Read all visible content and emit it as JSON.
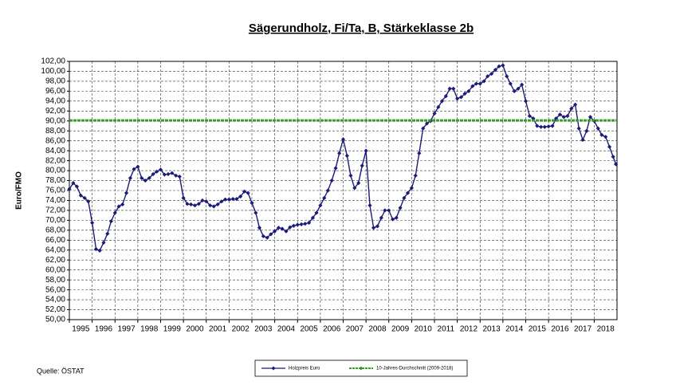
{
  "chart_data": {
    "type": "line",
    "title": "Sägerundholz, Fi/Ta, B, Stärkeklasse 2b",
    "y_label": "Euro/FMO",
    "source": "Quelle: ÖSTAT",
    "xlim": [
      1995,
      2019
    ],
    "xticks": [
      1995,
      1996,
      1997,
      1998,
      1999,
      2000,
      2001,
      2002,
      2003,
      2004,
      2005,
      2006,
      2007,
      2008,
      2009,
      2010,
      2011,
      2012,
      2013,
      2014,
      2015,
      2016,
      2017,
      2018
    ],
    "ylim": [
      50,
      102
    ],
    "yticks": [
      {
        "value": 50,
        "label": "50,00"
      },
      {
        "value": 52,
        "label": "52,00"
      },
      {
        "value": 54,
        "label": "54,00"
      },
      {
        "value": 56,
        "label": "56,00"
      },
      {
        "value": 58,
        "label": "58,00"
      },
      {
        "value": 60,
        "label": "60,00"
      },
      {
        "value": 62,
        "label": "62,00"
      },
      {
        "value": 64,
        "label": "64,00"
      },
      {
        "value": 66,
        "label": "66,00"
      },
      {
        "value": 68,
        "label": "68,00"
      },
      {
        "value": 70,
        "label": "70,00"
      },
      {
        "value": 72,
        "label": "72,00"
      },
      {
        "value": 74,
        "label": "74,00"
      },
      {
        "value": 76,
        "label": "76,00"
      },
      {
        "value": 78,
        "label": "78,00"
      },
      {
        "value": 80,
        "label": "80,00"
      },
      {
        "value": 82,
        "label": "82,00"
      },
      {
        "value": 84,
        "label": "84,00"
      },
      {
        "value": 86,
        "label": "86,00"
      },
      {
        "value": 88,
        "label": "88,00"
      },
      {
        "value": 90,
        "label": "90,00"
      },
      {
        "value": 92,
        "label": "92,00"
      },
      {
        "value": 94,
        "label": "94,00"
      },
      {
        "value": 96,
        "label": "96,00"
      },
      {
        "value": 98,
        "label": "98,00"
      },
      {
        "value": 100,
        "label": "100,00"
      },
      {
        "value": 102,
        "label": "102,00"
      }
    ],
    "grid": true,
    "series": [
      {
        "name": "Holzpreis Euro",
        "color": "#1c1c78",
        "x": [
          1995,
          1995.17,
          1995.33,
          1995.5,
          1995.67,
          1995.83,
          1996,
          1996.17,
          1996.33,
          1996.5,
          1996.67,
          1996.83,
          1997,
          1997.17,
          1997.33,
          1997.5,
          1997.67,
          1997.83,
          1998,
          1998.17,
          1998.33,
          1998.5,
          1998.67,
          1998.83,
          1999,
          1999.17,
          1999.33,
          1999.5,
          1999.67,
          1999.83,
          2000,
          2000.17,
          2000.33,
          2000.5,
          2000.67,
          2000.83,
          2001,
          2001.17,
          2001.33,
          2001.5,
          2001.67,
          2001.83,
          2002,
          2002.17,
          2002.33,
          2002.5,
          2002.67,
          2002.83,
          2003,
          2003.17,
          2003.33,
          2003.5,
          2003.67,
          2003.83,
          2004,
          2004.17,
          2004.33,
          2004.5,
          2004.67,
          2004.83,
          2005,
          2005.17,
          2005.33,
          2005.5,
          2005.67,
          2005.83,
          2006,
          2006.17,
          2006.33,
          2006.5,
          2006.67,
          2006.83,
          2007,
          2007.17,
          2007.33,
          2007.5,
          2007.67,
          2007.83,
          2008,
          2008.17,
          2008.33,
          2008.5,
          2008.67,
          2008.83,
          2009,
          2009.17,
          2009.33,
          2009.5,
          2009.67,
          2009.83,
          2010,
          2010.17,
          2010.33,
          2010.5,
          2010.67,
          2010.83,
          2011,
          2011.17,
          2011.33,
          2011.5,
          2011.67,
          2011.83,
          2012,
          2012.17,
          2012.33,
          2012.5,
          2012.67,
          2012.83,
          2013,
          2013.17,
          2013.33,
          2013.5,
          2013.67,
          2013.83,
          2014,
          2014.17,
          2014.33,
          2014.5,
          2014.67,
          2014.83,
          2015,
          2015.17,
          2015.33,
          2015.5,
          2015.67,
          2015.83,
          2016,
          2016.17,
          2016.33,
          2016.5,
          2016.67,
          2016.83,
          2017,
          2017.17,
          2017.33,
          2017.5,
          2017.67,
          2017.83,
          2018,
          2018.17,
          2018.33,
          2018.5,
          2018.67,
          2018.83,
          2018.95
        ],
        "values": [
          76.3,
          77.5,
          76.8,
          75.0,
          74.5,
          73.8,
          69.5,
          64.2,
          63.9,
          65.5,
          67.3,
          69.8,
          71.5,
          72.8,
          73.2,
          75.5,
          78.5,
          80.3,
          80.8,
          78.5,
          78.0,
          78.5,
          79.3,
          79.8,
          80.2,
          79.2,
          79.3,
          79.5,
          79.0,
          78.8,
          74.5,
          73.3,
          73.2,
          73.0,
          73.3,
          74.0,
          73.8,
          73.0,
          72.8,
          73.2,
          73.8,
          74.2,
          74.2,
          74.3,
          74.3,
          74.8,
          75.8,
          75.5,
          73.5,
          71.5,
          68.5,
          66.8,
          66.5,
          67.2,
          67.8,
          68.5,
          68.3,
          67.8,
          68.6,
          68.9,
          69.1,
          69.2,
          69.3,
          69.5,
          70.5,
          71.5,
          73.0,
          74.5,
          76.0,
          78.0,
          80.5,
          83.5,
          86.3,
          83.0,
          79.0,
          76.5,
          77.5,
          81.0,
          84.0,
          73.0,
          68.5,
          68.8,
          70.5,
          72.0,
          72.0,
          70.2,
          70.5,
          72.5,
          74.5,
          75.5,
          76.5,
          79.0,
          83.5,
          88.5,
          89.5,
          90.0,
          91.5,
          92.8,
          94.0,
          95.0,
          96.5,
          96.5,
          94.5,
          94.8,
          95.5,
          96.0,
          97.0,
          97.5,
          97.5,
          98.0,
          99.0,
          99.5,
          100.3,
          101.0,
          101.2,
          99.0,
          97.5,
          96.0,
          96.5,
          97.3,
          94.0,
          91.0,
          90.5,
          89.0,
          88.8,
          88.8,
          88.9,
          89.0,
          90.5,
          91.3,
          90.8,
          91.0,
          92.5,
          93.3,
          88.5,
          86.2,
          88.0,
          90.8,
          90.0,
          88.5,
          87.2,
          86.8,
          84.8,
          82.8,
          81.3
        ]
      },
      {
        "name": "10-Jahres-Durchschnitt (2009-2018)",
        "color": "#3a9a2a",
        "x": [
          1995,
          2019
        ],
        "values": [
          90.1,
          90.1
        ]
      }
    ]
  }
}
